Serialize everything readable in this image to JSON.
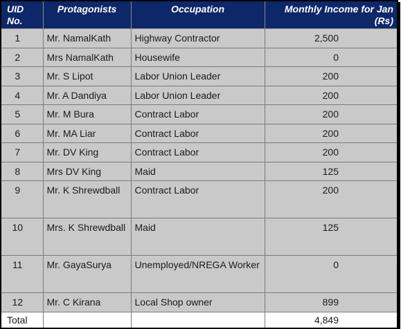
{
  "headers": {
    "uid": "UID No.",
    "protagonists": "Protagonists",
    "occupation": "Occupation",
    "income": "Monthly Income for Jan (Rs)"
  },
  "rows": [
    {
      "uid": "1",
      "name": "Mr. NamalKath",
      "occupation": "Highway Contractor",
      "income": "2,500"
    },
    {
      "uid": "2",
      "name": "Mrs NamalKath",
      "occupation": "Housewife",
      "income": "0"
    },
    {
      "uid": "3",
      "name": "Mr. S Lipot",
      "occupation": "Labor Union Leader",
      "income": "200"
    },
    {
      "uid": "4",
      "name": "Mr. A Dandiya",
      "occupation": "Labor Union Leader",
      "income": "200"
    },
    {
      "uid": "5",
      "name": "Mr. M Bura",
      "occupation": "Contract Labor",
      "income": "200"
    },
    {
      "uid": "6",
      "name": "Mr. MA Liar",
      "occupation": "Contract Labor",
      "income": "200"
    },
    {
      "uid": "7",
      "name": "Mr. DV King",
      "occupation": "Contract Labor",
      "income": "200"
    },
    {
      "uid": "8",
      "name": "Mrs DV King",
      "occupation": "Maid",
      "income": "125"
    },
    {
      "uid": "9",
      "name": "Mr. K Shrewdball",
      "occupation": "Contract Labor",
      "income": "200"
    },
    {
      "uid": "10",
      "name": "Mrs. K Shrewdball",
      "occupation": "Maid",
      "income": "125"
    },
    {
      "uid": "11",
      "name": "Mr. GayaSurya",
      "occupation": "Unemployed/NREGA Worker",
      "income": "0"
    },
    {
      "uid": "12",
      "name": "Mr. C Kirana",
      "occupation": "Local Shop owner",
      "income": "899"
    }
  ],
  "total": {
    "label": "Total",
    "income": "4,849"
  },
  "colors": {
    "header_bg": "#0d2769",
    "row_bg": "#c9c9c9",
    "header_text": "#ffffff"
  }
}
